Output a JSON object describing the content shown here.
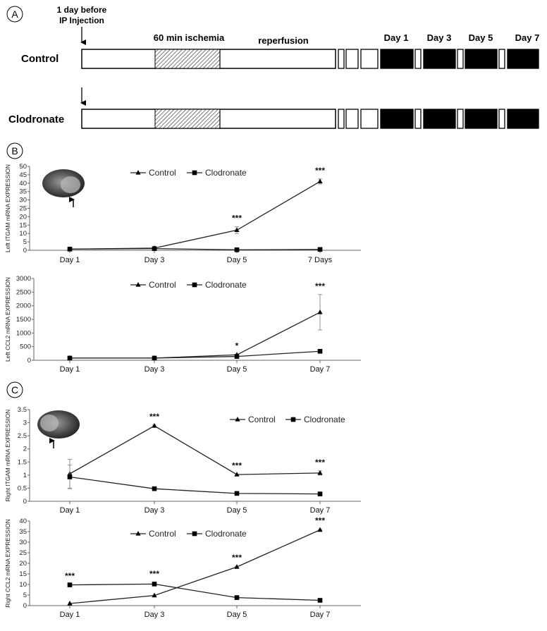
{
  "panel_a": {
    "label": "A",
    "injection_label": [
      "1 day before",
      "IP Injection"
    ],
    "ischemia_label": "60 min ischemia",
    "reperfusion_label": "reperfusion",
    "day_labels": [
      "Day 1",
      "Day 3",
      "Day 5",
      "Day 7"
    ],
    "groups": [
      "Control",
      "Clodronate"
    ]
  },
  "panel_b_label": "B",
  "panel_c_label": "C",
  "chart_data": [
    {
      "type": "line",
      "ylabel": "Left ITGAM mRNA EXPRESSION",
      "categories": [
        "Day 1",
        "Day 3",
        "Day 5",
        "7 Days"
      ],
      "ylim": [
        0,
        50
      ],
      "yticks": [
        0,
        5,
        10,
        15,
        20,
        25,
        30,
        35,
        40,
        45,
        50
      ],
      "series": [
        {
          "name": "Control",
          "values": [
            0.7,
            1.3,
            12,
            41
          ],
          "errors": [
            0,
            0.3,
            2,
            1.5
          ],
          "marker": "triangle"
        },
        {
          "name": "Clodronate",
          "values": [
            0.7,
            1,
            0.3,
            0.5
          ],
          "errors": [
            0,
            0,
            0,
            0
          ],
          "marker": "square"
        }
      ],
      "annotations": [
        {
          "index": 2,
          "text": "***"
        },
        {
          "index": 3,
          "text": "***"
        }
      ],
      "legend": "top-center"
    },
    {
      "type": "line",
      "ylabel": "Left CCL2 mRNA EXPRESSION",
      "categories": [
        "Day 1",
        "Day 3",
        "Day 5",
        "Day 7"
      ],
      "ylim": [
        0,
        3000
      ],
      "yticks": [
        0,
        500,
        1000,
        1500,
        2000,
        2500,
        3000
      ],
      "series": [
        {
          "name": "Control",
          "values": [
            80,
            80,
            200,
            1760
          ],
          "errors": [
            0,
            0,
            20,
            650
          ],
          "marker": "triangle"
        },
        {
          "name": "Clodronate",
          "values": [
            80,
            80,
            140,
            330
          ],
          "errors": [
            0,
            0,
            15,
            40
          ],
          "marker": "square"
        }
      ],
      "annotations": [
        {
          "index": 2,
          "text": "*"
        },
        {
          "index": 3,
          "text": "***"
        }
      ],
      "legend": "top-center"
    },
    {
      "type": "line",
      "ylabel": "Right ITGAM mRNA EXPRESSION",
      "categories": [
        "Day 1",
        "Day 3",
        "Day 5",
        "Day 7"
      ],
      "ylim": [
        0,
        3.5
      ],
      "yticks": [
        0,
        0.5,
        1,
        1.5,
        2,
        2.5,
        3,
        3.5
      ],
      "series": [
        {
          "name": "Control",
          "values": [
            1.05,
            2.88,
            1.02,
            1.08
          ],
          "errors": [
            0.55,
            0.03,
            0.02,
            0.08
          ],
          "marker": "triangle"
        },
        {
          "name": "Clodronate",
          "values": [
            0.93,
            0.48,
            0.3,
            0.28
          ],
          "errors": [
            0.45,
            0.02,
            0.02,
            0.05
          ],
          "marker": "square"
        }
      ],
      "annotations": [
        {
          "index": 1,
          "text": "***"
        },
        {
          "index": 2,
          "text": "***"
        },
        {
          "index": 3,
          "text": "***"
        }
      ],
      "legend": "top-right"
    },
    {
      "type": "line",
      "ylabel": "Right CCL2 mRNA EXPRESSION",
      "categories": [
        "Day 1",
        "Day 3",
        "Day 5",
        "Day 7"
      ],
      "ylim": [
        0,
        40
      ],
      "yticks": [
        0,
        5,
        10,
        15,
        20,
        25,
        30,
        35,
        40
      ],
      "series": [
        {
          "name": "Control",
          "values": [
            1,
            4.8,
            18.3,
            35.8
          ],
          "errors": [
            0,
            0,
            0.3,
            0.3
          ],
          "marker": "triangle"
        },
        {
          "name": "Clodronate",
          "values": [
            9.8,
            10.2,
            3.8,
            2.5
          ],
          "errors": [
            0.2,
            0.8,
            0,
            0.2
          ],
          "marker": "square"
        }
      ],
      "annotations": [
        {
          "index": 0,
          "text": "***"
        },
        {
          "index": 1,
          "text": "***"
        },
        {
          "index": 2,
          "text": "***"
        },
        {
          "index": 3,
          "text": "***"
        }
      ],
      "legend": "top-center"
    }
  ]
}
